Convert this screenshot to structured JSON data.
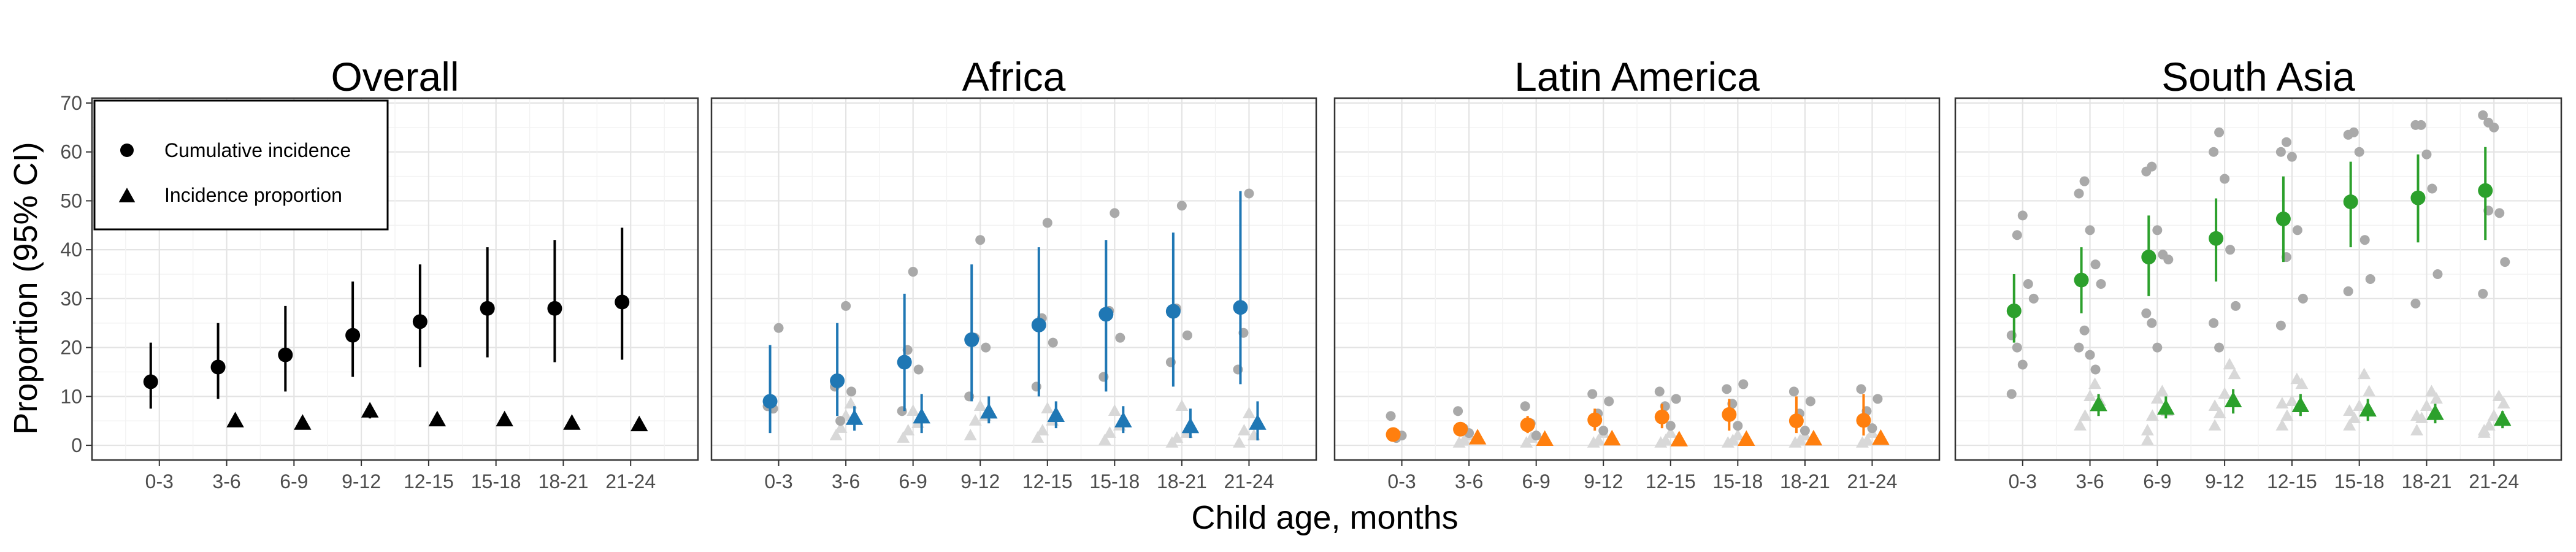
{
  "chart_data": {
    "type": "scatter",
    "title": "",
    "xlabel": "Child age, months",
    "ylabel": "Proportion (95% CI)",
    "ylim": [
      -3,
      71
    ],
    "yticks": [
      0,
      10,
      20,
      30,
      40,
      50,
      60,
      70
    ],
    "categories": [
      "0-3",
      "3-6",
      "6-9",
      "9-12",
      "12-15",
      "15-18",
      "18-21",
      "21-24"
    ],
    "grid": true,
    "legend": {
      "position": "top-left",
      "entries": [
        {
          "label": "Cumulative incidence",
          "marker": "circle"
        },
        {
          "label": "Incidence proportion",
          "marker": "triangle"
        }
      ]
    },
    "panels": [
      {
        "title": "Overall",
        "color": "#000000",
        "cumulative_incidence": {
          "estimate": [
            13,
            16,
            18.5,
            22.5,
            25.3,
            28,
            28,
            29.3
          ],
          "lower": [
            7.5,
            9.5,
            11,
            14,
            16,
            18,
            17,
            17.5
          ],
          "upper": [
            21,
            25,
            28.5,
            33.5,
            37,
            40.5,
            42,
            44.5
          ]
        },
        "incidence_proportion": {
          "estimate": [
            null,
            5,
            4.5,
            7,
            5.2,
            5.2,
            4.5,
            4.2
          ],
          "lower": [
            null,
            4,
            3.5,
            5.5,
            4,
            4,
            3.5,
            3.3
          ],
          "upper": [
            null,
            6,
            5.5,
            8.5,
            6.5,
            6.5,
            5.5,
            5.2
          ]
        },
        "cohort_cumulative": [],
        "cohort_proportion": []
      },
      {
        "title": "Africa",
        "color": "#1f77b4",
        "cumulative_incidence": {
          "estimate": [
            9,
            13.2,
            17,
            21.6,
            24.6,
            26.8,
            27.4,
            28.2
          ],
          "lower": [
            2.5,
            6,
            7,
            9,
            10,
            11,
            12,
            12.5
          ],
          "upper": [
            20.5,
            25,
            31,
            37,
            40.5,
            42,
            43.5,
            52
          ]
        },
        "incidence_proportion": {
          "estimate": [
            null,
            5.5,
            5.8,
            6.8,
            6.1,
            5,
            3.8,
            4.5
          ],
          "lower": [
            null,
            3,
            2.5,
            4.5,
            3.5,
            2.5,
            1.5,
            1
          ],
          "upper": [
            null,
            8,
            10.5,
            10,
            9,
            8,
            7.5,
            9
          ]
        },
        "cohort_cumulative": [
          [
            8,
            7.5,
            24
          ],
          [
            12,
            5,
            28.5,
            11
          ],
          [
            7,
            19.5,
            35.5,
            15.5
          ],
          [
            10,
            22,
            42,
            20
          ],
          [
            12,
            26,
            45.5,
            21
          ],
          [
            14,
            27.5,
            47.5,
            22
          ],
          [
            17,
            28,
            49,
            22.5
          ],
          [
            15.5,
            23,
            51.5
          ]
        ],
        "cohort_proportion": [
          [],
          [
            2,
            3.5,
            6,
            8.5
          ],
          [
            1.5,
            3,
            7,
            4.5
          ],
          [
            2,
            5,
            8,
            6
          ],
          [
            1.5,
            3,
            7.5,
            5
          ],
          [
            1,
            2.5,
            7,
            4
          ],
          [
            0.5,
            1.5,
            8,
            2.5
          ],
          [
            0.5,
            3,
            6.5,
            2
          ]
        ]
      },
      {
        "title": "Latin America",
        "color": "#ff7f0e",
        "cumulative_incidence": {
          "estimate": [
            2.2,
            3.3,
            4.2,
            5.2,
            5.8,
            6.3,
            5,
            5.1
          ],
          "lower": [
            1.5,
            2,
            2.5,
            3,
            3.5,
            3,
            2.5,
            2
          ],
          "upper": [
            3.2,
            4.5,
            6,
            7.5,
            8.5,
            9.5,
            10,
            10.5
          ]
        },
        "incidence_proportion": {
          "estimate": [
            null,
            1.5,
            1.2,
            1.3,
            1.1,
            1.2,
            1.3,
            1.4
          ],
          "lower": [
            null,
            0.8,
            0.6,
            0.6,
            0.5,
            0.5,
            0.5,
            0.6
          ],
          "upper": [
            null,
            2.5,
            2,
            2.2,
            2,
            2.2,
            2.3,
            2.5
          ]
        },
        "cohort_cumulative": [
          [
            6,
            1.5,
            2
          ],
          [
            7,
            3.5,
            2.5
          ],
          [
            8,
            4.5,
            2
          ],
          [
            10.5,
            6.5,
            3,
            9
          ],
          [
            11,
            8,
            4,
            9.5
          ],
          [
            11.5,
            8.5,
            4,
            12.5
          ],
          [
            11,
            6.5,
            3,
            9
          ],
          [
            11.5,
            7,
            3.5,
            9.5
          ]
        ],
        "cohort_proportion": [
          [],
          [
            0.5,
            1,
            2
          ],
          [
            0.5,
            1.5,
            2
          ],
          [
            0.5,
            1,
            2.5
          ],
          [
            0.5,
            1,
            2.5
          ],
          [
            0.5,
            1,
            2
          ],
          [
            0.5,
            1,
            2
          ],
          [
            0.5,
            1,
            2.5
          ]
        ]
      },
      {
        "title": "South Asia",
        "color": "#2ca02c",
        "cumulative_incidence": {
          "estimate": [
            27.5,
            33.8,
            38.5,
            42.3,
            46.3,
            49.8,
            50.6,
            52.1
          ],
          "lower": [
            21,
            27,
            30.5,
            33.5,
            37.5,
            40.5,
            41.5,
            42
          ],
          "upper": [
            35,
            40.5,
            47,
            50.5,
            55,
            58,
            59.5,
            61
          ]
        },
        "incidence_proportion": {
          "estimate": [
            null,
            8.3,
            7.6,
            9.1,
            8.1,
            7.2,
            6.5,
            5.3
          ],
          "lower": [
            null,
            6,
            5.5,
            6.5,
            6,
            5,
            4.5,
            3.5
          ],
          "upper": [
            null,
            10.5,
            10,
            11.5,
            10.5,
            9.5,
            8.5,
            7
          ]
        },
        "cohort_cumulative": [
          [
            10.5,
            43,
            47,
            33,
            30,
            22.5,
            20,
            16.5
          ],
          [
            51.5,
            54,
            44,
            37,
            33,
            20,
            23.5,
            18.5,
            15.5
          ],
          [
            56,
            57,
            44,
            39,
            38,
            27,
            25,
            20
          ],
          [
            60,
            64,
            54.5,
            40,
            28.5,
            25,
            20
          ],
          [
            60,
            62,
            59,
            44,
            30,
            24.5,
            38.5
          ],
          [
            63.5,
            64,
            60,
            42,
            34,
            31.5
          ],
          [
            65.5,
            65.5,
            59.5,
            52.5,
            35,
            29
          ],
          [
            67.5,
            66,
            65,
            47.5,
            37.5,
            31,
            48
          ]
        ],
        "cohort_proportion": [
          [],
          [
            4,
            6,
            10,
            12.5,
            9
          ],
          [
            3,
            6,
            9.5,
            11,
            7,
            1
          ],
          [
            4,
            6.5,
            10.5,
            16.5,
            14.5,
            8
          ],
          [
            4,
            6,
            9,
            13.5,
            12.5,
            8.5
          ],
          [
            4,
            5.5,
            8,
            14.5,
            11,
            7
          ],
          [
            3,
            5.5,
            8,
            11,
            9.5,
            6
          ],
          [
            2.5,
            4,
            6,
            10,
            8.5,
            3
          ]
        ]
      }
    ]
  }
}
